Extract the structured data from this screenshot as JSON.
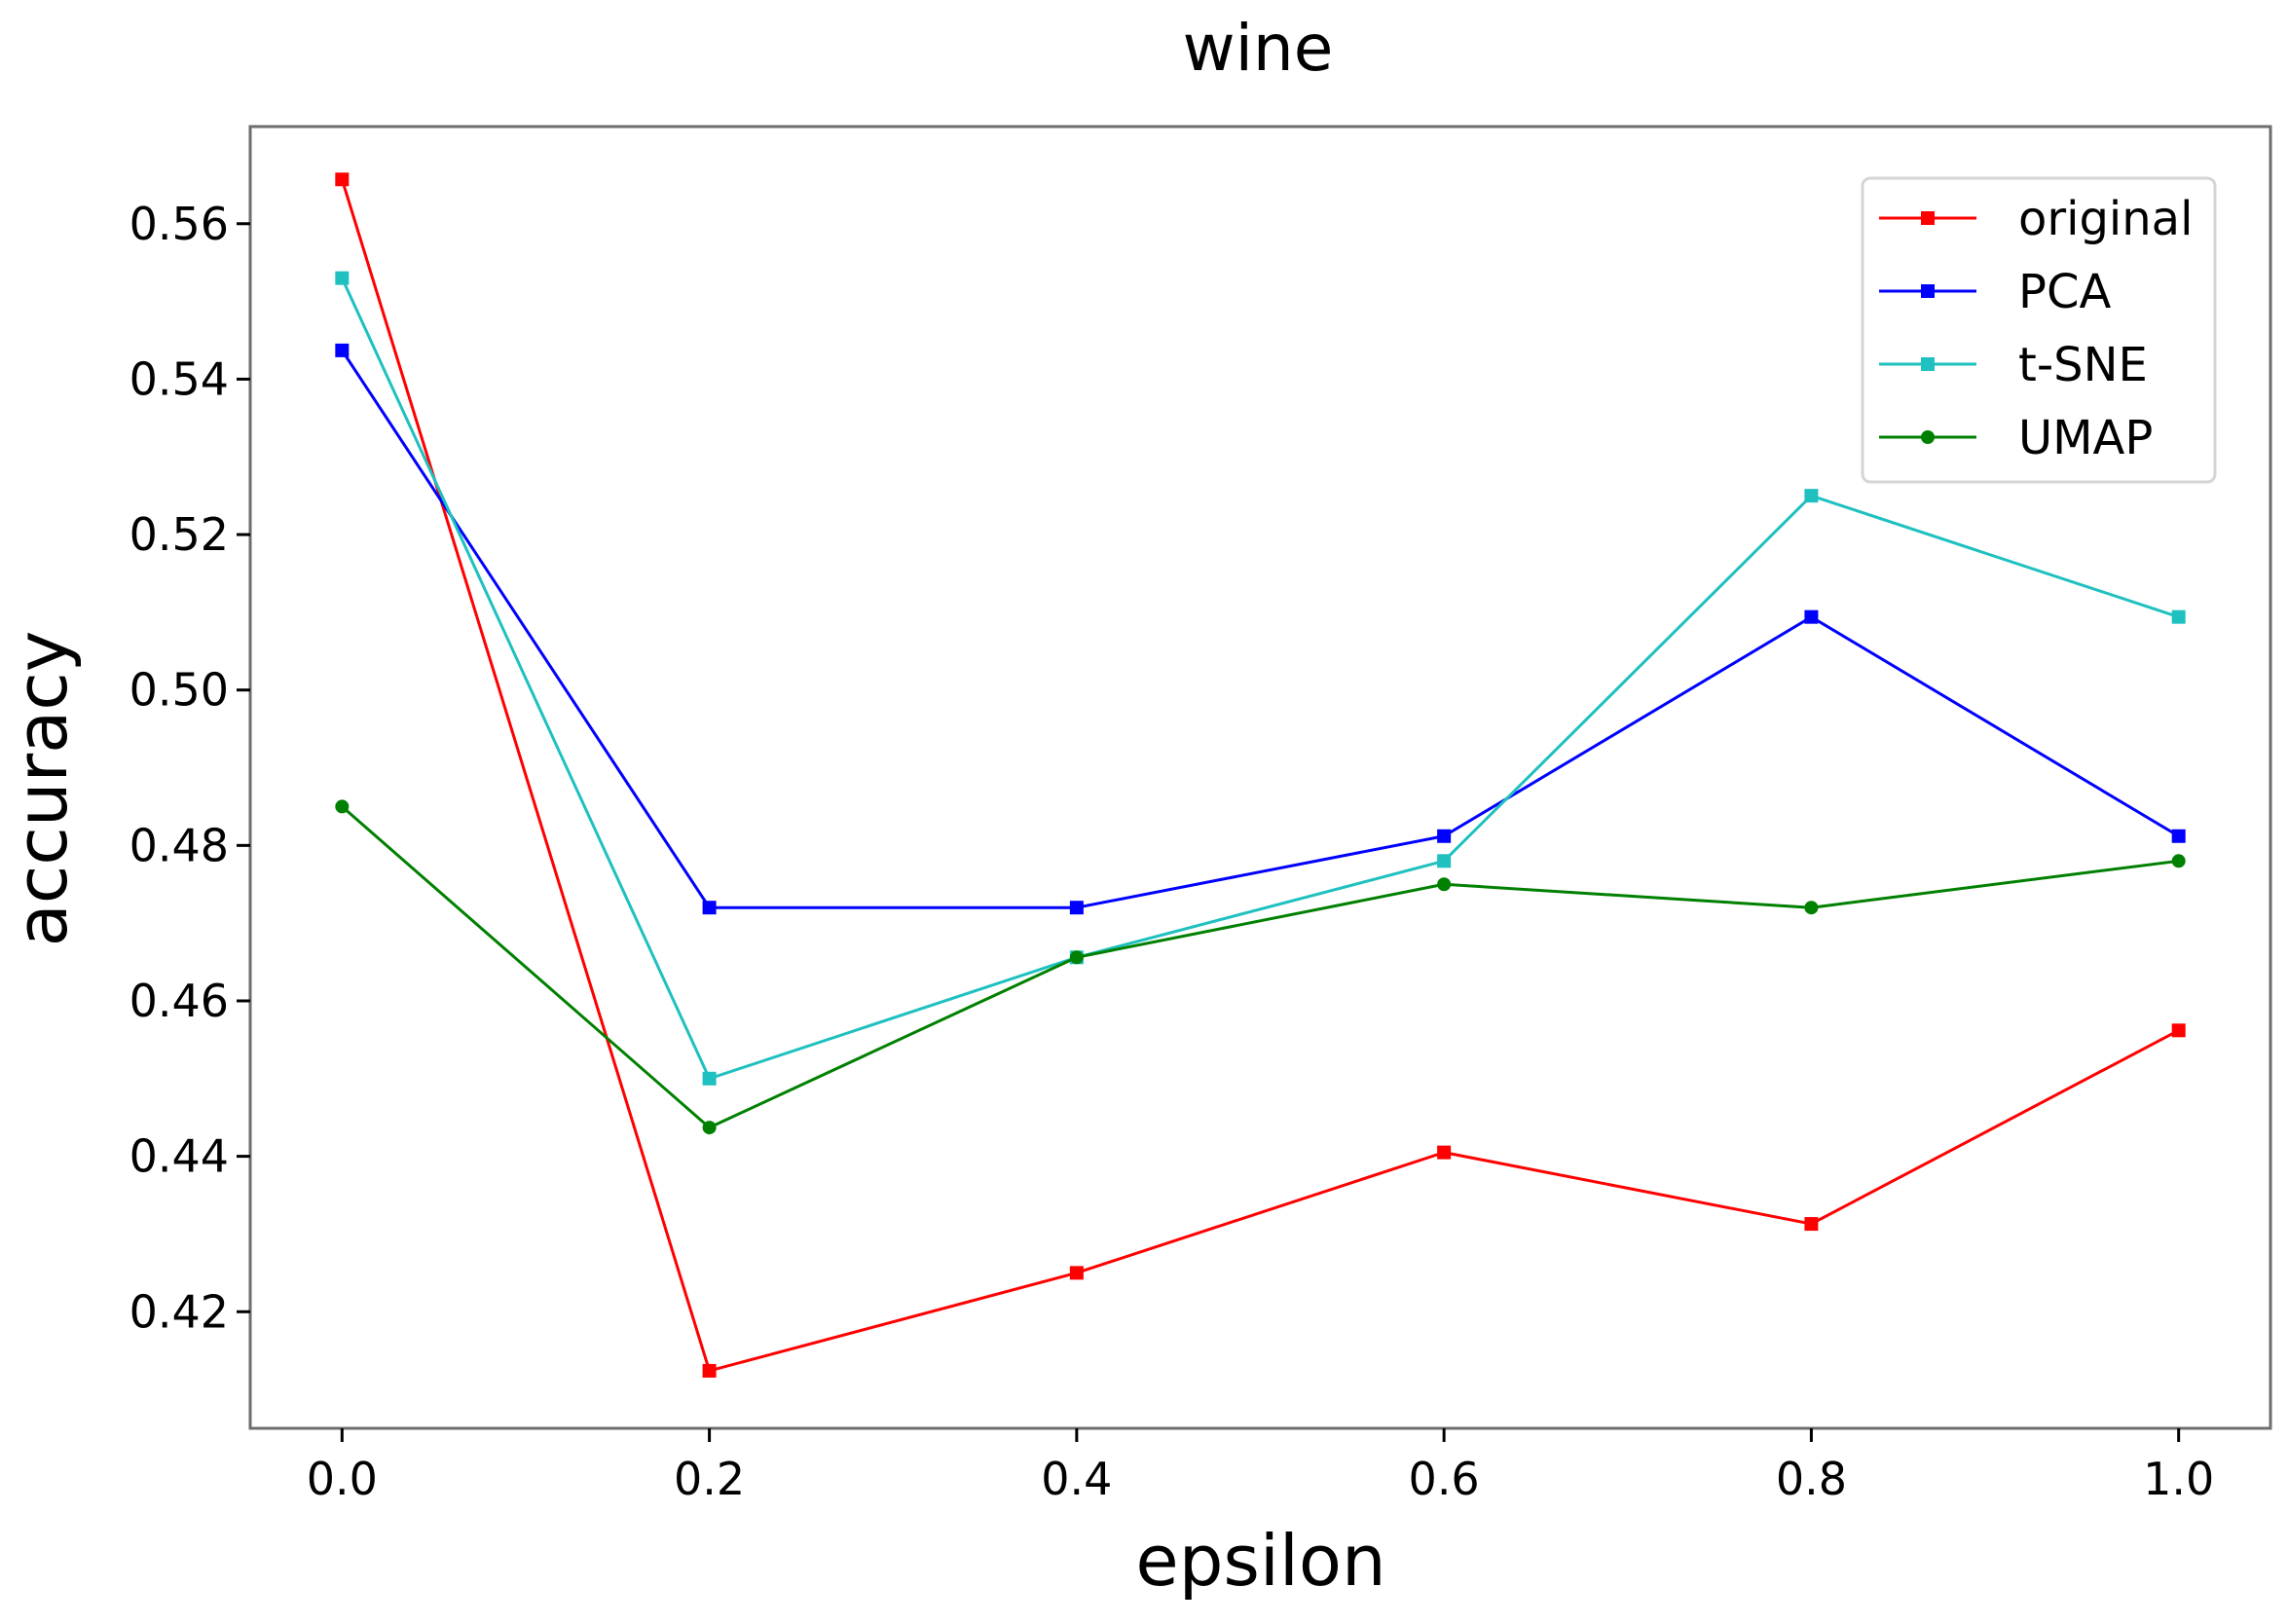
{
  "chart_data": {
    "type": "line",
    "title": "wine",
    "xlabel": "epsilon",
    "ylabel": "accuracy",
    "x": [
      0.0,
      0.2,
      0.4,
      0.6,
      0.8,
      1.0
    ],
    "xticks": [
      "0.0",
      "0.2",
      "0.4",
      "0.6",
      "0.8",
      "1.0"
    ],
    "yticks": [
      "0.42",
      "0.44",
      "0.46",
      "0.48",
      "0.50",
      "0.52",
      "0.54",
      "0.56"
    ],
    "xlim": [
      -0.05,
      1.05
    ],
    "ylim": [
      0.405,
      0.5725
    ],
    "grid": false,
    "legend_position": "top-right",
    "series": [
      {
        "name": "original",
        "color": "#ff0000",
        "marker": "square",
        "values": [
          0.5657,
          0.4124,
          0.425,
          0.4405,
          0.4313,
          0.4562
        ]
      },
      {
        "name": "PCA",
        "color": "#0000ff",
        "marker": "square",
        "values": [
          0.5437,
          0.472,
          0.472,
          0.4812,
          0.5094,
          0.4812
        ]
      },
      {
        "name": "t-SNE",
        "color": "#1fc0c0",
        "marker": "square",
        "values": [
          0.553,
          0.45,
          0.4656,
          0.478,
          0.525,
          0.5094
        ]
      },
      {
        "name": "UMAP",
        "color": "#008000",
        "marker": "circle",
        "values": [
          0.485,
          0.4437,
          0.4656,
          0.475,
          0.472,
          0.478
        ]
      }
    ]
  }
}
